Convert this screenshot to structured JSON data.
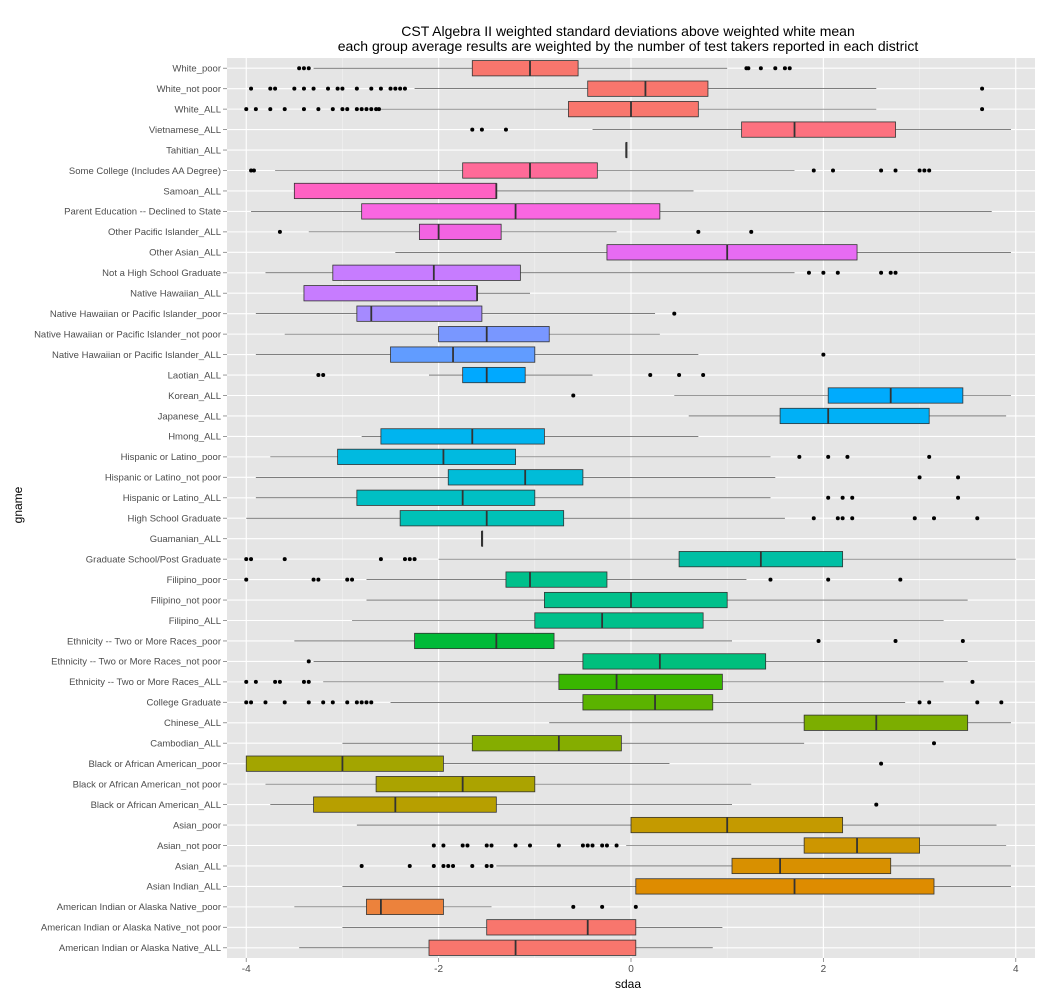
{
  "chart_data": {
    "type": "boxplot",
    "title": "CST Algebra II weighted standard deviations above weighted white mean",
    "subtitle": "each group average results are weighted by the number of test takers reported in each district",
    "xlabel": "sdaa",
    "ylabel": "gname",
    "xlim": [
      -4.2,
      4.2
    ],
    "x_ticks": [
      -4,
      -2,
      0,
      2,
      4
    ],
    "x_tick_labels": [
      "-4",
      "-2",
      "0",
      "2",
      "4"
    ],
    "grid": true,
    "legend": "none",
    "series": [
      {
        "name": "White_poor",
        "color": "#F8766D",
        "whisker_low": -3.3,
        "q1": -1.65,
        "median": -1.05,
        "q3": -0.55,
        "whisker_high": 1.0,
        "outliers": [
          -3.45,
          -3.4,
          -3.35,
          1.2,
          1.22,
          1.35,
          1.5,
          1.6,
          1.65
        ]
      },
      {
        "name": "White_not poor",
        "color": "#F8766D",
        "whisker_low": -2.25,
        "q1": -0.45,
        "median": 0.15,
        "q3": 0.8,
        "whisker_high": 2.55,
        "outliers": [
          -3.95,
          -3.75,
          -3.7,
          -3.5,
          -3.4,
          -3.3,
          -3.15,
          -3.05,
          -3.0,
          -2.85,
          -2.7,
          -2.6,
          -2.5,
          -2.45,
          -2.4,
          -2.35,
          3.65
        ]
      },
      {
        "name": "White_ALL",
        "color": "#F8766D",
        "whisker_low": -2.6,
        "q1": -0.65,
        "median": 0.0,
        "q3": 0.7,
        "whisker_high": 2.55,
        "outliers": [
          -4.0,
          -3.9,
          -3.75,
          -3.6,
          -3.4,
          -3.25,
          -3.1,
          -3.0,
          -2.95,
          -2.85,
          -2.8,
          -2.75,
          -2.7,
          -2.65,
          -2.62,
          3.65
        ]
      },
      {
        "name": "Vietnamese_ALL",
        "color": "#FC717F",
        "whisker_low": -0.4,
        "q1": 1.15,
        "median": 1.7,
        "q3": 2.75,
        "whisker_high": 3.95,
        "outliers": [
          -1.65,
          -1.55,
          -1.3
        ]
      },
      {
        "name": "Tahitian_ALL",
        "color": "#FB727F",
        "whisker_low": -0.05,
        "q1": -0.05,
        "median": -0.05,
        "q3": -0.05,
        "whisker_high": -0.05,
        "outliers": []
      },
      {
        "name": "Some College (Includes AA Degree)",
        "color": "#FF6A98",
        "whisker_low": -3.7,
        "q1": -1.75,
        "median": -1.05,
        "q3": -0.35,
        "whisker_high": 1.7,
        "outliers": [
          -3.95,
          -3.92,
          1.9,
          2.1,
          2.6,
          2.75,
          3.0,
          3.05,
          3.1
        ]
      },
      {
        "name": "Samoan_ALL",
        "color": "#FF61C3",
        "whisker_low": -3.5,
        "q1": -3.5,
        "median": -1.4,
        "q3": -1.4,
        "whisker_high": 0.65,
        "outliers": []
      },
      {
        "name": "Parent Education -- Declined to State",
        "color": "#F966E1",
        "whisker_low": -3.95,
        "q1": -2.8,
        "median": -1.2,
        "q3": 0.3,
        "whisker_high": 3.75,
        "outliers": []
      },
      {
        "name": "Other Pacific Islander_ALL",
        "color": "#F263E2",
        "whisker_low": -3.35,
        "q1": -2.2,
        "median": -2.0,
        "q3": -1.35,
        "whisker_high": -0.15,
        "outliers": [
          -3.65,
          0.7,
          1.25
        ]
      },
      {
        "name": "Other Asian_ALL",
        "color": "#E76BF3",
        "whisker_low": -2.45,
        "q1": -0.25,
        "median": 1.0,
        "q3": 2.35,
        "whisker_high": 3.95,
        "outliers": []
      },
      {
        "name": "Not a High School Graduate",
        "color": "#C77CFF",
        "whisker_low": -3.8,
        "q1": -3.1,
        "median": -2.05,
        "q3": -1.15,
        "whisker_high": 1.7,
        "outliers": [
          1.85,
          2.0,
          2.15,
          2.6,
          2.7,
          2.75
        ]
      },
      {
        "name": "Native Hawaiian_ALL",
        "color": "#C77CFF",
        "whisker_low": -3.4,
        "q1": -3.4,
        "median": -1.6,
        "q3": -1.6,
        "whisker_high": -1.05,
        "outliers": []
      },
      {
        "name": "Native Hawaiian or Pacific Islander_poor",
        "color": "#A58AFF",
        "whisker_low": -3.9,
        "q1": -2.85,
        "median": -2.7,
        "q3": -1.55,
        "whisker_high": 0.25,
        "outliers": [
          0.45
        ]
      },
      {
        "name": "Native Hawaiian or Pacific Islander_not poor",
        "color": "#7997FF",
        "whisker_low": -3.6,
        "q1": -2.0,
        "median": -1.5,
        "q3": -0.85,
        "whisker_high": 0.3,
        "outliers": []
      },
      {
        "name": "Native Hawaiian or Pacific Islander_ALL",
        "color": "#619CFF",
        "whisker_low": -3.9,
        "q1": -2.5,
        "median": -1.85,
        "q3": -1.0,
        "whisker_high": 0.7,
        "outliers": [
          2.0
        ]
      },
      {
        "name": "Laotian_ALL",
        "color": "#00A9FF",
        "whisker_low": -2.1,
        "q1": -1.75,
        "median": -1.5,
        "q3": -1.1,
        "whisker_high": -0.4,
        "outliers": [
          -3.25,
          -3.2,
          0.2,
          0.5,
          0.75
        ]
      },
      {
        "name": "Korean_ALL",
        "color": "#00ABFD",
        "whisker_low": 0.45,
        "q1": 2.05,
        "median": 2.7,
        "q3": 3.45,
        "whisker_high": 3.95,
        "outliers": [
          -0.6
        ]
      },
      {
        "name": "Japanese_ALL",
        "color": "#00B0F6",
        "whisker_low": 0.6,
        "q1": 1.55,
        "median": 2.05,
        "q3": 3.1,
        "whisker_high": 3.9,
        "outliers": []
      },
      {
        "name": "Hmong_ALL",
        "color": "#00B4EF",
        "whisker_low": -2.8,
        "q1": -2.6,
        "median": -1.65,
        "q3": -0.9,
        "whisker_high": 0.7,
        "outliers": []
      },
      {
        "name": "Hispanic or Latino_poor",
        "color": "#00BAE0",
        "whisker_low": -3.75,
        "q1": -3.05,
        "median": -1.95,
        "q3": -1.2,
        "whisker_high": 1.45,
        "outliers": [
          1.75,
          2.05,
          2.25,
          3.1
        ]
      },
      {
        "name": "Hispanic or Latino_not poor",
        "color": "#00BCD8",
        "whisker_low": -3.9,
        "q1": -1.9,
        "median": -1.1,
        "q3": -0.5,
        "whisker_high": 1.5,
        "outliers": [
          3.0,
          3.4
        ]
      },
      {
        "name": "Hispanic or Latino_ALL",
        "color": "#00BFC4",
        "whisker_low": -3.9,
        "q1": -2.85,
        "median": -1.75,
        "q3": -1.0,
        "whisker_high": 1.45,
        "outliers": [
          2.05,
          2.2,
          2.3,
          3.4
        ]
      },
      {
        "name": "High School Graduate",
        "color": "#00C1B7",
        "whisker_low": -4.0,
        "q1": -2.4,
        "median": -1.5,
        "q3": -0.7,
        "whisker_high": 1.6,
        "outliers": [
          1.9,
          2.15,
          2.2,
          2.3,
          2.95,
          3.15,
          3.6
        ]
      },
      {
        "name": "Guamanian_ALL",
        "color": "#00C1B0",
        "whisker_low": -1.55,
        "q1": -1.55,
        "median": -1.55,
        "q3": -1.55,
        "whisker_high": -1.55,
        "outliers": []
      },
      {
        "name": "Graduate School/Post Graduate",
        "color": "#00BFA4",
        "whisker_low": -2.0,
        "q1": 0.5,
        "median": 1.35,
        "q3": 2.2,
        "whisker_high": 4.0,
        "outliers": [
          -4.0,
          -3.95,
          -3.6,
          -2.6,
          -2.35,
          -2.3,
          -2.25
        ]
      },
      {
        "name": "Filipino_poor",
        "color": "#00C08B",
        "whisker_low": -2.75,
        "q1": -1.3,
        "median": -1.05,
        "q3": -0.25,
        "whisker_high": 1.2,
        "outliers": [
          -4.0,
          -3.3,
          -3.25,
          -2.95,
          -2.9,
          1.45,
          2.05,
          2.8
        ]
      },
      {
        "name": "Filipino_not poor",
        "color": "#00C08B",
        "whisker_low": -2.75,
        "q1": -0.9,
        "median": 0.0,
        "q3": 1.0,
        "whisker_high": 3.5,
        "outliers": []
      },
      {
        "name": "Filipino_ALL",
        "color": "#00C08B",
        "whisker_low": -2.9,
        "q1": -1.0,
        "median": -0.3,
        "q3": 0.75,
        "whisker_high": 3.25,
        "outliers": []
      },
      {
        "name": "Ethnicity -- Two or More Races_poor",
        "color": "#00BA38",
        "whisker_low": -3.5,
        "q1": -2.25,
        "median": -1.4,
        "q3": -0.8,
        "whisker_high": 1.05,
        "outliers": [
          1.95,
          2.75,
          3.45
        ]
      },
      {
        "name": "Ethnicity -- Two or More Races_not poor",
        "color": "#00BF7D",
        "whisker_low": -3.3,
        "q1": -0.5,
        "median": 0.3,
        "q3": 1.4,
        "whisker_high": 3.5,
        "outliers": [
          -3.35
        ]
      },
      {
        "name": "Ethnicity -- Two or More Races_ALL",
        "color": "#39B600",
        "whisker_low": -3.2,
        "q1": -0.75,
        "median": -0.15,
        "q3": 0.95,
        "whisker_high": 3.25,
        "outliers": [
          -4.0,
          -3.9,
          -3.7,
          -3.65,
          -3.4,
          -3.35,
          3.55
        ]
      },
      {
        "name": "College Graduate",
        "color": "#5BB300",
        "whisker_low": -2.5,
        "q1": -0.5,
        "median": 0.25,
        "q3": 0.85,
        "whisker_high": 2.85,
        "outliers": [
          -4.0,
          -3.95,
          -3.8,
          -3.6,
          -3.35,
          -3.2,
          -3.1,
          -2.95,
          -2.85,
          -2.8,
          -2.75,
          -2.7,
          3.0,
          3.1,
          3.6,
          3.85
        ]
      },
      {
        "name": "Chinese_ALL",
        "color": "#7CAE00",
        "whisker_low": -0.85,
        "q1": 1.8,
        "median": 2.55,
        "q3": 3.5,
        "whisker_high": 3.95,
        "outliers": []
      },
      {
        "name": "Cambodian_ALL",
        "color": "#85AD00",
        "whisker_low": -3.0,
        "q1": -1.65,
        "median": -0.75,
        "q3": -0.1,
        "whisker_high": 1.8,
        "outliers": [
          3.15
        ]
      },
      {
        "name": "Black or African American_poor",
        "color": "#A3A500",
        "whisker_low": -4.0,
        "q1": -4.0,
        "median": -3.0,
        "q3": -1.95,
        "whisker_high": 0.4,
        "outliers": [
          2.6
        ]
      },
      {
        "name": "Black or African American_not poor",
        "color": "#ABA300",
        "whisker_low": -3.8,
        "q1": -2.65,
        "median": -1.75,
        "q3": -1.0,
        "whisker_high": 1.25,
        "outliers": []
      },
      {
        "name": "Black or African American_ALL",
        "color": "#B79F00",
        "whisker_low": -3.75,
        "q1": -3.3,
        "median": -2.45,
        "q3": -1.4,
        "whisker_high": 1.05,
        "outliers": [
          2.55
        ]
      },
      {
        "name": "Asian_poor",
        "color": "#C49A00",
        "whisker_low": -2.85,
        "q1": 0.0,
        "median": 1.0,
        "q3": 2.2,
        "whisker_high": 3.8,
        "outliers": []
      },
      {
        "name": "Asian_not poor",
        "color": "#CD9600",
        "whisker_low": -0.05,
        "q1": 1.8,
        "median": 2.35,
        "q3": 3.0,
        "whisker_high": 3.9,
        "outliers": [
          -2.05,
          -1.95,
          -1.75,
          -1.7,
          -1.5,
          -1.45,
          -1.2,
          -1.05,
          -0.75,
          -0.5,
          -0.45,
          -0.4,
          -0.3,
          -0.25,
          -0.15
        ]
      },
      {
        "name": "Asian_ALL",
        "color": "#D89000",
        "whisker_low": -1.4,
        "q1": 1.05,
        "median": 1.55,
        "q3": 2.7,
        "whisker_high": 3.95,
        "outliers": [
          -2.8,
          -2.3,
          -2.05,
          -1.95,
          -1.9,
          -1.85,
          -1.65,
          -1.5,
          -1.45
        ]
      },
      {
        "name": "Asian Indian_ALL",
        "color": "#DE8C00",
        "whisker_low": -3.0,
        "q1": 0.05,
        "median": 1.7,
        "q3": 3.15,
        "whisker_high": 3.95,
        "outliers": []
      },
      {
        "name": "American Indian or Alaska Native_poor",
        "color": "#EC823C",
        "whisker_low": -3.5,
        "q1": -2.75,
        "median": -2.6,
        "q3": -1.95,
        "whisker_high": -1.45,
        "outliers": [
          -0.6,
          -0.3,
          0.05
        ]
      },
      {
        "name": "American Indian or Alaska Native_not poor",
        "color": "#F8766D",
        "whisker_low": -3.0,
        "q1": -1.5,
        "median": -0.45,
        "q3": 0.05,
        "whisker_high": 0.95,
        "outliers": []
      },
      {
        "name": "American Indian or Alaska Native_ALL",
        "color": "#F8766D",
        "whisker_low": -3.45,
        "q1": -2.1,
        "median": -1.2,
        "q3": 0.05,
        "whisker_high": 0.85,
        "outliers": []
      }
    ]
  }
}
